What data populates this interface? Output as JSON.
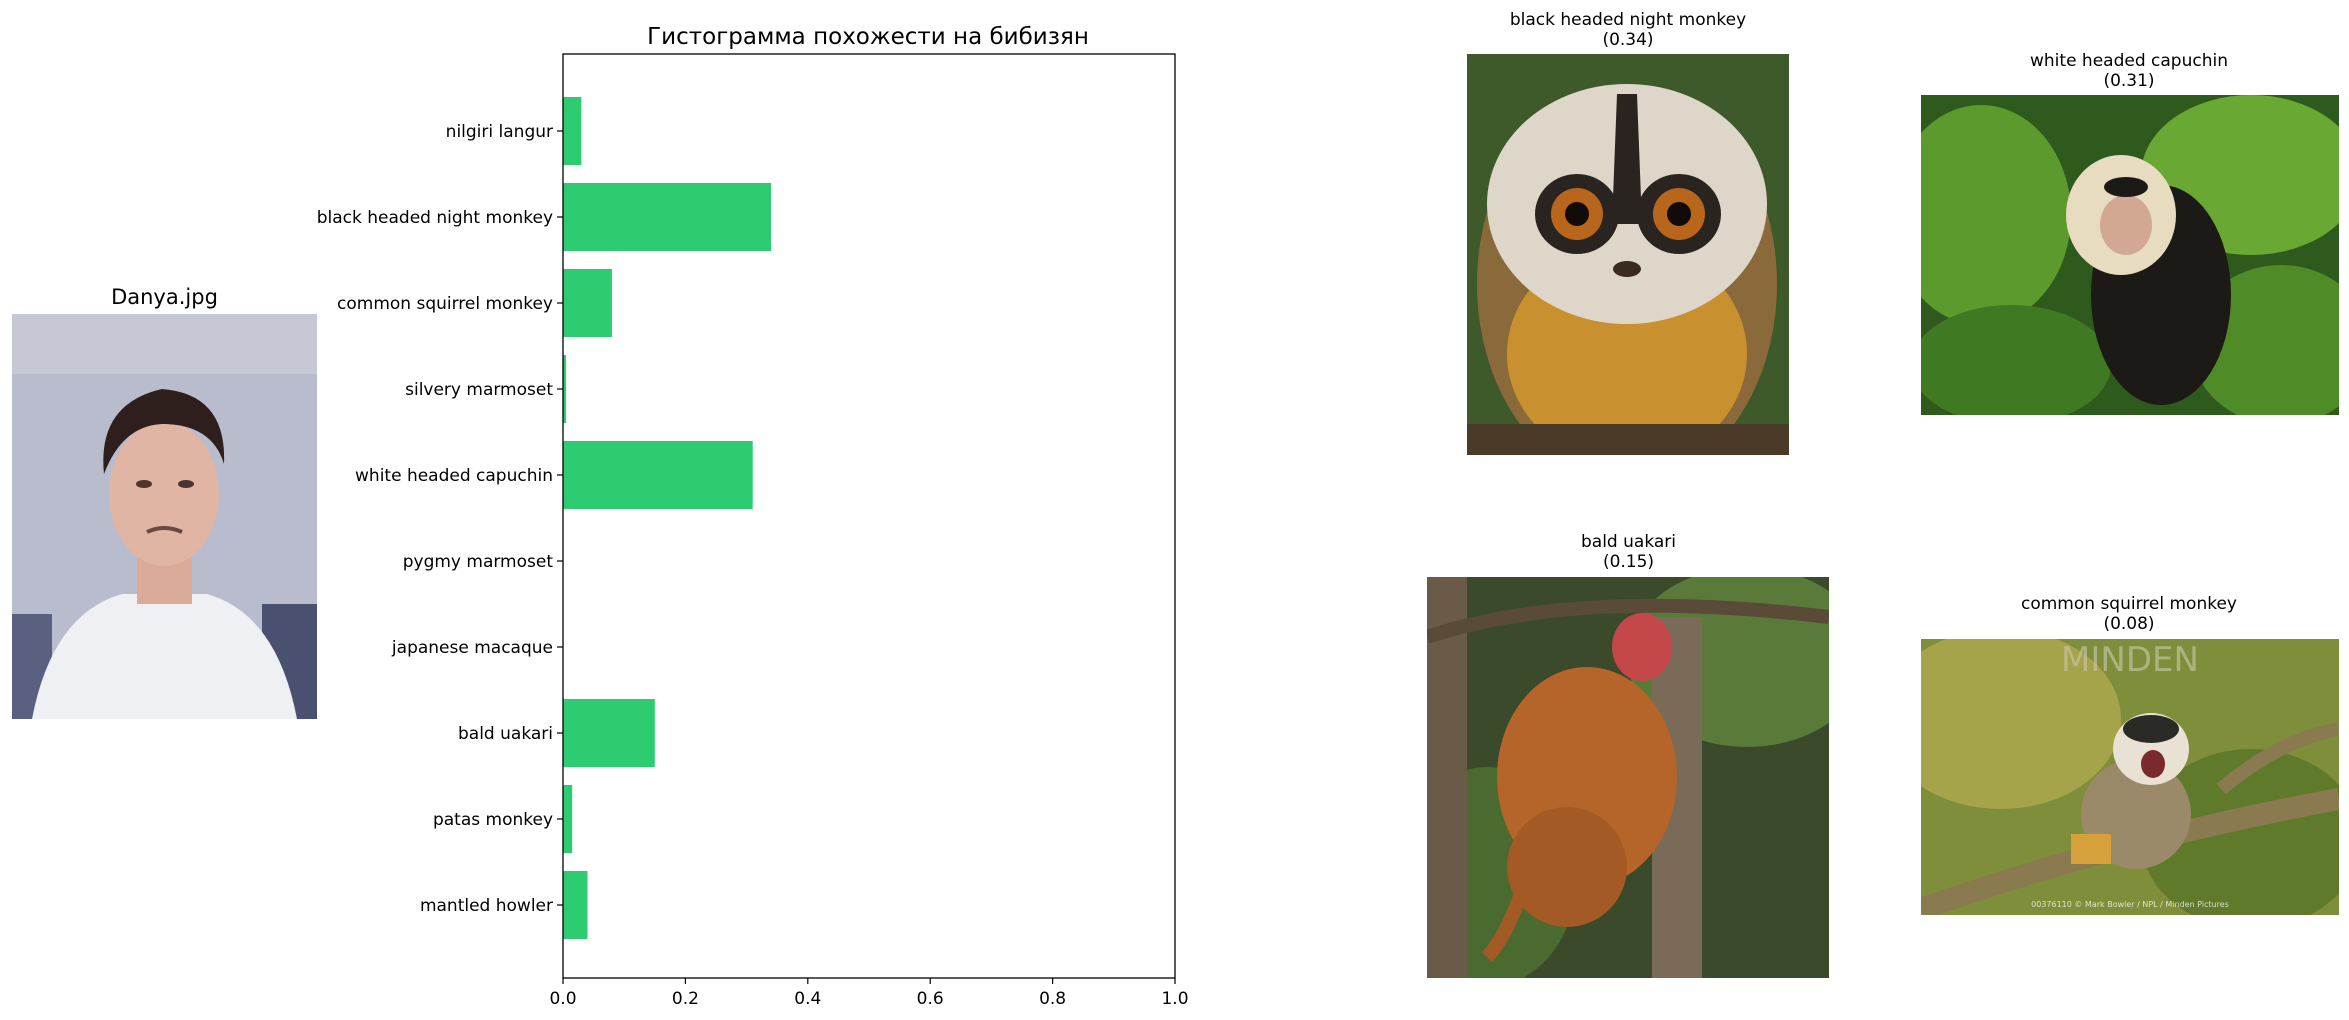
{
  "person": {
    "title": "Danya.jpg"
  },
  "chart_data": {
    "type": "bar",
    "orientation": "horizontal",
    "title": "Гистограмма похожести на бибизян",
    "categories": [
      "nilgiri langur",
      "black headed night monkey",
      "common squirrel monkey",
      "silvery marmoset",
      "white headed capuchin",
      "pygmy marmoset",
      "japanese macaque",
      "bald uakari",
      "patas monkey",
      "mantled howler"
    ],
    "values": [
      0.03,
      0.34,
      0.08,
      0.005,
      0.31,
      0.0,
      0.0,
      0.15,
      0.015,
      0.04
    ],
    "xlim": [
      0,
      1
    ],
    "xticks": [
      "0.0",
      "0.2",
      "0.4",
      "0.6",
      "0.8",
      "1.0"
    ],
    "bar_color": "#2ecc71",
    "grid": false
  },
  "matches": [
    {
      "name": "black headed night monkey",
      "score": "(0.34)"
    },
    {
      "name": "white headed capuchin",
      "score": "(0.31)"
    },
    {
      "name": "bald uakari",
      "score": "(0.15)"
    },
    {
      "name": "common squirrel monkey",
      "score": "(0.08)"
    }
  ],
  "watermark": {
    "brand": "MINDEN",
    "credit": "00376110 © Mark Bowler / NPL / Minden Pictures"
  }
}
